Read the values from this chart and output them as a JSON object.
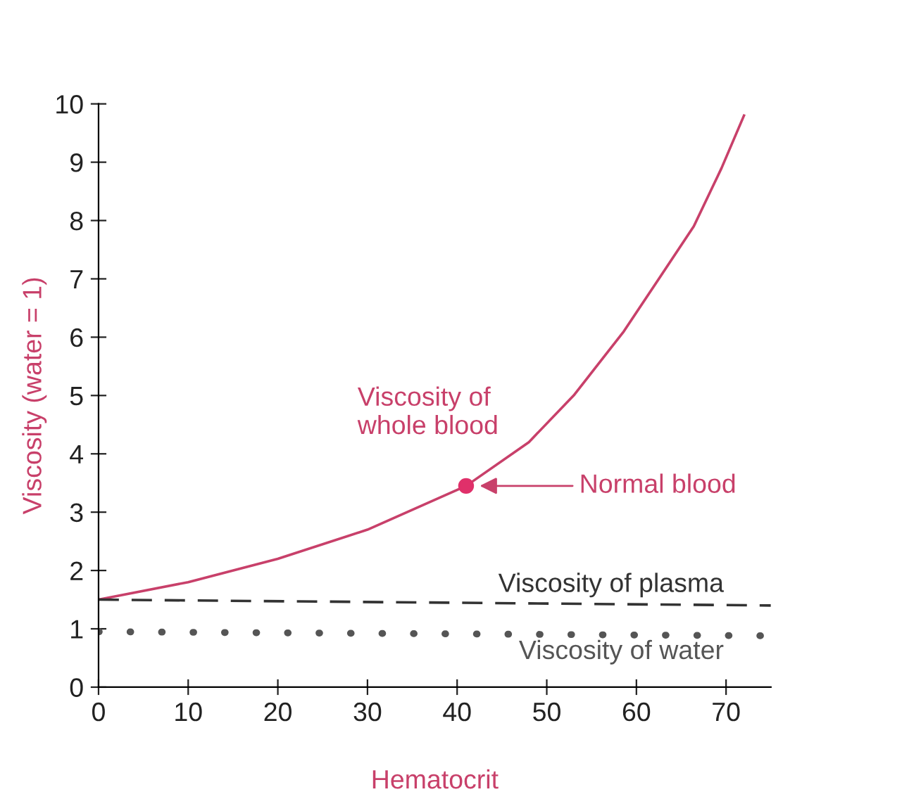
{
  "chart_data": {
    "type": "line",
    "xlabel": "Hematocrit",
    "ylabel": "Viscosity (water = 1)",
    "xlim": [
      0,
      75
    ],
    "ylim": [
      0,
      10
    ],
    "xticks": [
      0,
      10,
      20,
      30,
      40,
      50,
      60,
      70
    ],
    "yticks": [
      0,
      1,
      2,
      3,
      4,
      5,
      6,
      7,
      8,
      9,
      10
    ],
    "grid": false,
    "legend": false,
    "series": [
      {
        "name": "Viscosity of whole blood",
        "color": "#c8406a",
        "line_style": "solid",
        "x": [
          0,
          10,
          20,
          30,
          41,
          48,
          53,
          58.6,
          62.5,
          66.4,
          69.5,
          72
        ],
        "values": [
          1.5,
          1.8,
          2.2,
          2.7,
          3.45,
          4.2,
          5.0,
          6.1,
          7.0,
          7.9,
          8.9,
          9.8
        ]
      },
      {
        "name": "Viscosity of plasma",
        "color": "#333333",
        "line_style": "dashed",
        "x": [
          0,
          75
        ],
        "values": [
          1.5,
          1.4
        ]
      },
      {
        "name": "Viscosity of water",
        "color": "#555555",
        "line_style": "dotted",
        "x": [
          0,
          75
        ],
        "values": [
          0.95,
          0.88
        ]
      },
      {
        "type": "scatter",
        "color": "#e0306a",
        "marker": "circle",
        "x": [
          41
        ],
        "values": [
          3.45
        ]
      }
    ],
    "annotations": [
      "Normal blood"
    ]
  }
}
